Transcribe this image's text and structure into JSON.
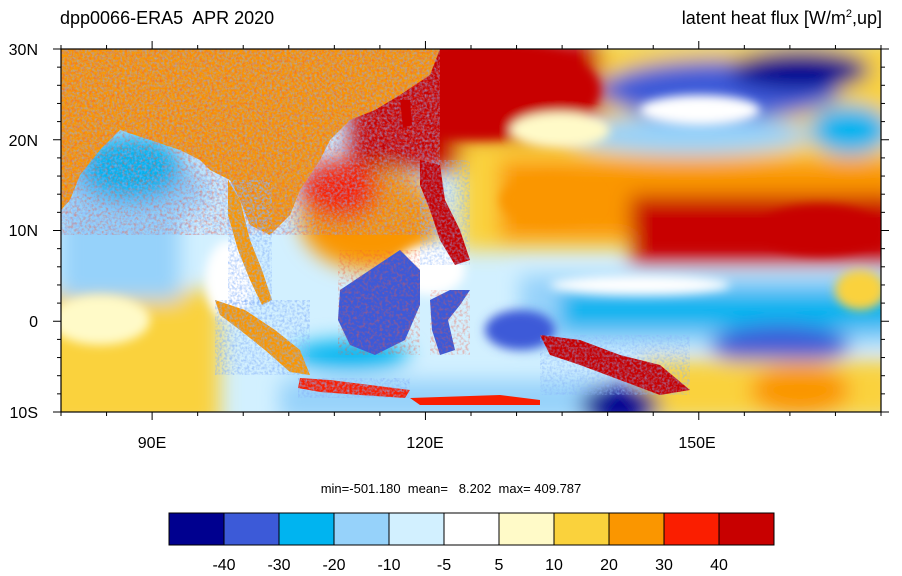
{
  "header": {
    "left_title": "dpp0066-ERA5  APR 2020",
    "right_title_main": "latent heat flux [W/m",
    "right_title_sup": "2",
    "right_title_tail": ",up]"
  },
  "map": {
    "lat_labels": [
      "30N",
      "20N",
      "10N",
      "0",
      "10S"
    ],
    "lon_labels": [
      "90E",
      "120E",
      "150E"
    ],
    "lat_range": [
      -10,
      30
    ],
    "lon_range": [
      80,
      170
    ],
    "ocean_pattern": "latent heat flux field, red/orange positive, blue negative"
  },
  "stats": {
    "text": "min=-501.180  mean=   8.202  max= 409.787"
  },
  "colorbar": {
    "colors": [
      "#00008f",
      "#3c5ad8",
      "#00b4f0",
      "#96d2fa",
      "#d2f0ff",
      "#ffffff",
      "#fffac8",
      "#fad23c",
      "#fa9600",
      "#fa1e00",
      "#c80000"
    ],
    "labels": [
      "-40",
      "-30",
      "-20",
      "-10",
      "-5",
      "5",
      "10",
      "20",
      "30",
      "40"
    ]
  }
}
